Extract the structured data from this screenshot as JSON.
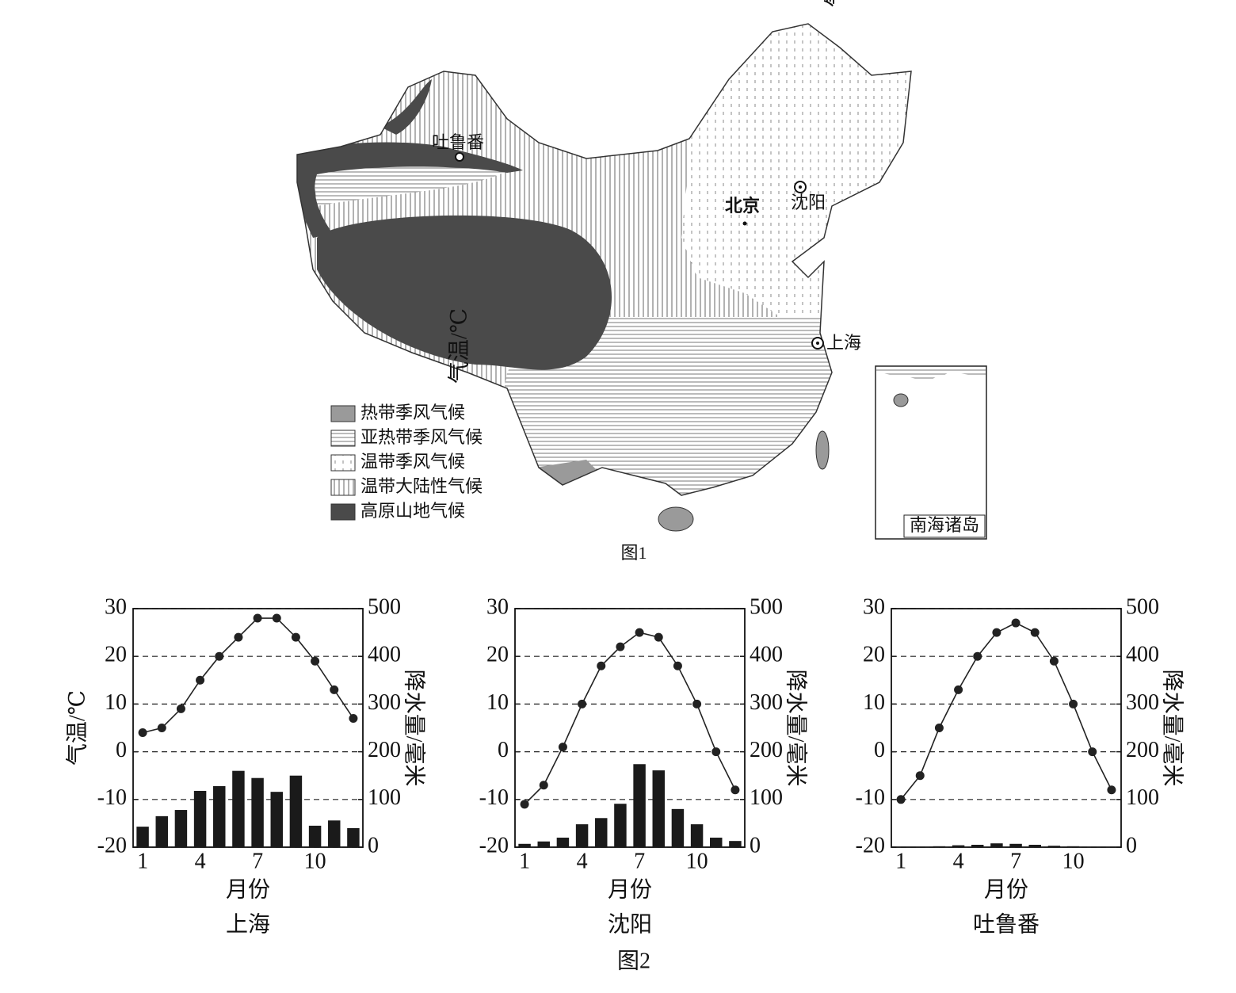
{
  "map": {
    "places": [
      "吐鲁番",
      "北京",
      "沈阳",
      "上海"
    ],
    "inset": "南海诸岛",
    "caption": "图1",
    "legend": [
      "热带季风气候",
      "亚热带季风气候",
      "温带季风气候",
      "温带大陆性气候",
      "高原山地气候"
    ]
  },
  "caption": "图2",
  "chart_data": [
    {
      "type": "climate",
      "title": "上海",
      "x_label": "月份",
      "y_label": "气温/℃",
      "y2_label": "降水量/毫米",
      "categories": [
        1,
        null,
        null,
        4,
        null,
        null,
        7,
        null,
        null,
        10,
        null,
        null
      ],
      "ylim": [
        -20,
        30
      ],
      "yticks": [
        -20,
        -10,
        0,
        10,
        20,
        30
      ],
      "y2lim": [
        0,
        500
      ],
      "y2ticks": [
        0,
        100,
        200,
        300,
        400,
        500
      ],
      "grid": true,
      "series": [
        {
          "type": "line",
          "color": "#222222",
          "values": [
            4,
            5,
            9,
            15,
            20,
            24,
            28,
            28,
            24,
            19,
            13,
            7
          ]
        },
        {
          "type": "bar",
          "axis": "y2",
          "color": "#1a1a1a",
          "values": [
            43,
            65,
            78,
            118,
            128,
            160,
            145,
            116,
            150,
            45,
            56,
            40
          ]
        }
      ]
    },
    {
      "type": "climate",
      "title": "沈阳",
      "x_label": "月份",
      "y_label": "气温/℃",
      "y2_label": "降水量/毫米",
      "categories": [
        1,
        null,
        null,
        4,
        null,
        null,
        7,
        null,
        null,
        10,
        null,
        null
      ],
      "ylim": [
        -20,
        30
      ],
      "yticks": [
        -20,
        -10,
        0,
        10,
        20,
        30
      ],
      "y2lim": [
        0,
        500
      ],
      "y2ticks": [
        0,
        100,
        200,
        300,
        400,
        500
      ],
      "grid": true,
      "series": [
        {
          "type": "line",
          "color": "#222222",
          "values": [
            -11,
            -7,
            1,
            10,
            18,
            22,
            25,
            24,
            18,
            10,
            0,
            -8
          ]
        },
        {
          "type": "bar",
          "axis": "y2",
          "color": "#1a1a1a",
          "values": [
            7,
            12,
            20,
            48,
            61,
            91,
            174,
            161,
            80,
            48,
            20,
            13
          ]
        }
      ]
    },
    {
      "type": "climate",
      "title": "吐鲁番",
      "x_label": "月份",
      "y_label": "气温/℃",
      "y2_label": "降水量/毫米",
      "categories": [
        1,
        null,
        null,
        4,
        null,
        null,
        7,
        null,
        null,
        10,
        null,
        null
      ],
      "ylim": [
        -20,
        30
      ],
      "yticks": [
        -20,
        -10,
        0,
        10,
        20,
        30
      ],
      "y2lim": [
        0,
        500
      ],
      "y2ticks": [
        0,
        100,
        200,
        300,
        400,
        500
      ],
      "grid": true,
      "series": [
        {
          "type": "line",
          "color": "#222222",
          "values": [
            -10,
            -5,
            5,
            13,
            20,
            25,
            27,
            25,
            19,
            10,
            0,
            -8
          ]
        },
        {
          "type": "bar",
          "axis": "y2",
          "color": "#1a1a1a",
          "values": [
            1,
            1,
            2,
            4,
            5,
            8,
            7,
            5,
            3,
            2,
            1,
            1
          ]
        }
      ]
    }
  ]
}
